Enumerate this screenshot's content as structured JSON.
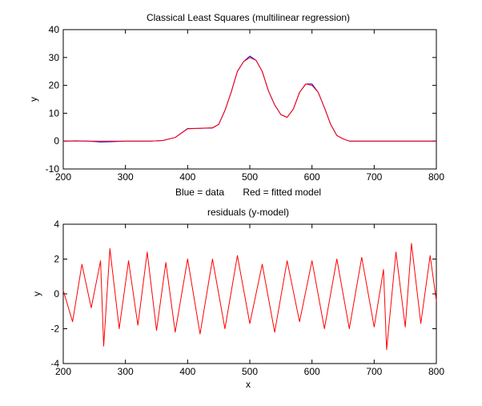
{
  "chart_data": [
    {
      "type": "line",
      "title": "Classical Least Squares (multilinear regression)",
      "xlabel": "Blue = data       Red = fitted model",
      "ylabel": "y",
      "xlim": [
        200,
        800
      ],
      "ylim": [
        -10,
        40
      ],
      "xticks": [
        200,
        300,
        400,
        500,
        600,
        700,
        800
      ],
      "yticks": [
        -10,
        0,
        10,
        20,
        30,
        40
      ],
      "grid": false,
      "series": [
        {
          "color": "#0000ff",
          "x": [
            200,
            220,
            240,
            260,
            280,
            300,
            320,
            340,
            360,
            380,
            400,
            420,
            440,
            450,
            460,
            470,
            480,
            490,
            500,
            510,
            520,
            530,
            540,
            550,
            560,
            570,
            580,
            590,
            600,
            610,
            620,
            630,
            640,
            650,
            660,
            680,
            700,
            720,
            740,
            760,
            780,
            800
          ],
          "y": [
            0,
            0.1,
            0,
            -0.3,
            -0.2,
            0,
            0,
            0,
            0.2,
            1.3,
            4.5,
            4.6,
            4.7,
            6,
            11,
            17.5,
            25,
            28.5,
            30.5,
            29,
            25,
            18,
            13,
            9.5,
            8.5,
            11.5,
            17.5,
            20.5,
            20.5,
            17.5,
            12,
            6,
            2,
            0.8,
            0,
            0,
            0,
            0,
            0,
            0,
            0,
            0
          ]
        },
        {
          "color": "#ff0000",
          "x": [
            200,
            220,
            240,
            260,
            280,
            300,
            320,
            340,
            360,
            380,
            400,
            420,
            440,
            450,
            460,
            470,
            480,
            490,
            500,
            510,
            520,
            530,
            540,
            550,
            560,
            570,
            580,
            590,
            600,
            610,
            620,
            630,
            640,
            650,
            660,
            680,
            700,
            720,
            740,
            760,
            780,
            800
          ],
          "y": [
            0,
            0,
            0,
            0,
            0,
            0,
            0,
            0,
            0.2,
            1.3,
            4.4,
            4.6,
            4.8,
            6,
            11,
            17.5,
            25,
            28.5,
            30,
            29,
            25,
            18,
            13,
            9.5,
            8.5,
            11.5,
            17.5,
            20.5,
            20,
            17.5,
            12,
            6,
            2,
            0.8,
            0,
            0,
            0,
            0,
            0,
            0,
            0,
            0
          ]
        }
      ]
    },
    {
      "type": "line",
      "title": "residuals (y-model)",
      "xlabel": "x",
      "ylabel": "y",
      "xlim": [
        200,
        800
      ],
      "ylim": [
        -4,
        4
      ],
      "xticks": [
        200,
        300,
        400,
        500,
        600,
        700,
        800
      ],
      "yticks": [
        -4,
        -2,
        0,
        2,
        4
      ],
      "grid": false,
      "series": [
        {
          "color": "#ff0000",
          "x": [
            200,
            215,
            230,
            245,
            260,
            265,
            275,
            290,
            305,
            320,
            335,
            350,
            365,
            380,
            400,
            420,
            440,
            460,
            480,
            500,
            520,
            540,
            560,
            580,
            600,
            620,
            640,
            660,
            680,
            700,
            715,
            720,
            735,
            750,
            760,
            775,
            790,
            800
          ],
          "y": [
            0.2,
            -1.6,
            1.7,
            -0.8,
            1.9,
            -3.0,
            2.6,
            -2.0,
            1.9,
            -1.8,
            2.4,
            -2.1,
            1.8,
            -2.2,
            2.0,
            -2.3,
            2.0,
            -2.0,
            2.2,
            -1.7,
            1.7,
            -2.2,
            1.9,
            -1.6,
            1.9,
            -2.0,
            2.0,
            -2.0,
            2.1,
            -1.9,
            1.4,
            -3.2,
            2.4,
            -1.9,
            2.9,
            -1.7,
            2.2,
            -0.4
          ]
        }
      ]
    }
  ]
}
